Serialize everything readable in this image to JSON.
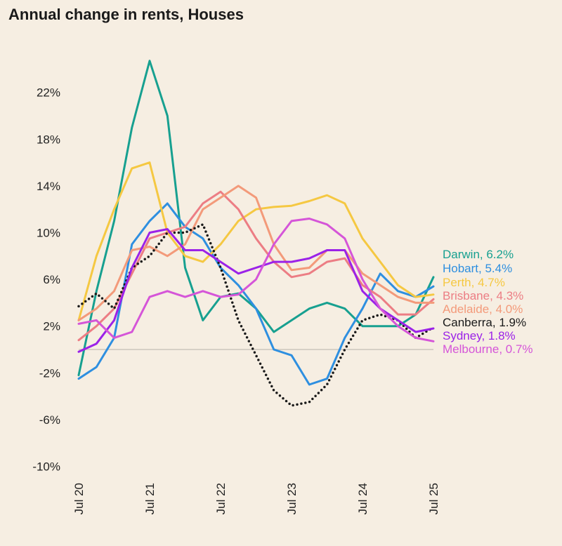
{
  "chart_data": {
    "type": "line",
    "title": "Annual change in rents, Houses",
    "xlabel": "",
    "ylabel": "",
    "ylim": [
      -10,
      24
    ],
    "yticks": [
      22,
      18,
      14,
      10,
      6,
      2,
      -2,
      -6,
      -10
    ],
    "ytick_labels": [
      "22%",
      "18%",
      "14%",
      "10%",
      "6%",
      "2%",
      "-2%",
      "-6%",
      "-10%"
    ],
    "xticks": [
      "Jul 20",
      "Jul 21",
      "Jul 22",
      "Jul 23",
      "Jul 24",
      "Jul 25"
    ],
    "x": [
      "Jul 20",
      "Oct 20",
      "Jan 21",
      "Apr 21",
      "Jul 21",
      "Oct 21",
      "Jan 22",
      "Apr 22",
      "Jul 22",
      "Oct 22",
      "Jan 23",
      "Apr 23",
      "Jul 23",
      "Oct 23",
      "Jan 24",
      "Apr 24",
      "Jul 24",
      "Oct 24",
      "Jan 25",
      "Apr 25",
      "Jul 25"
    ],
    "zero_line": true,
    "grid": false,
    "legend": "right, direct labels",
    "series": [
      {
        "name": "Darwin",
        "label": "Darwin, 6.2%",
        "color": "#17A090",
        "dashed": false,
        "values": [
          -2.2,
          5,
          11,
          19,
          24.7,
          20,
          7,
          2.5,
          4.5,
          4.8,
          3.5,
          1.5,
          2.5,
          3.5,
          4,
          3.5,
          2,
          2,
          2,
          3,
          6.2
        ]
      },
      {
        "name": "Hobart",
        "label": "Hobart, 5.4%",
        "color": "#2E8FE0",
        "dashed": false,
        "values": [
          -2.5,
          -1.5,
          1,
          9,
          11,
          12.5,
          10.5,
          9.5,
          7,
          5.5,
          3.5,
          0,
          -0.5,
          -3,
          -2.5,
          1,
          3.5,
          6.5,
          5,
          4.5,
          5.4
        ]
      },
      {
        "name": "Perth",
        "label": "Perth, 4.7%",
        "color": "#F5C842",
        "dashed": false,
        "values": [
          2.5,
          8,
          12,
          15.5,
          16,
          10,
          8,
          7.5,
          9,
          11,
          12,
          12.2,
          12.3,
          12.7,
          13.2,
          12.5,
          9.5,
          7.5,
          5.5,
          4.5,
          4.7
        ]
      },
      {
        "name": "Brisbane",
        "label": "Brisbane, 4.3%",
        "color": "#EC7D84",
        "dashed": false,
        "values": [
          0.8,
          2,
          3.5,
          6.5,
          9.5,
          10,
          10.5,
          12.5,
          13.5,
          12,
          9.5,
          7.5,
          6.2,
          6.5,
          7.5,
          7.8,
          5.5,
          4.5,
          3,
          3,
          4.3
        ]
      },
      {
        "name": "Adelaide",
        "label": "Adelaide, 4.0%",
        "color": "#F39A7A",
        "dashed": false,
        "values": [
          2.5,
          3.5,
          5,
          8.5,
          8.8,
          8,
          9,
          12,
          13,
          14,
          13,
          9,
          6.8,
          7,
          8.5,
          8.5,
          6.5,
          5.5,
          4.5,
          4,
          4.0
        ]
      },
      {
        "name": "Canberra",
        "label": "Canberra, 1.9%",
        "color": "#1a1a1a",
        "dashed": true,
        "values": [
          3.7,
          4.8,
          3.5,
          7,
          8,
          10,
          10,
          10.7,
          7,
          2.5,
          -0.5,
          -3.5,
          -4.8,
          -4.5,
          -3,
          0,
          2.5,
          3,
          2.5,
          1,
          1.9
        ]
      },
      {
        "name": "Sydney",
        "label": "Sydney, 1.8%",
        "color": "#9B22E8",
        "dashed": false,
        "values": [
          -0.2,
          0.5,
          2.5,
          7,
          10,
          10.3,
          8.5,
          8.5,
          7.5,
          6.5,
          7,
          7.5,
          7.5,
          7.8,
          8.5,
          8.5,
          5,
          3.5,
          2.5,
          1.5,
          1.8
        ]
      },
      {
        "name": "Melbourne",
        "label": "Melbourne, 0.7%",
        "color": "#D555D8",
        "dashed": false,
        "values": [
          2.2,
          2.5,
          1,
          1.5,
          4.5,
          5,
          4.5,
          5,
          4.5,
          4.7,
          6,
          9,
          11,
          11.2,
          10.7,
          9.5,
          6,
          3.5,
          2,
          1,
          0.7
        ]
      }
    ]
  }
}
